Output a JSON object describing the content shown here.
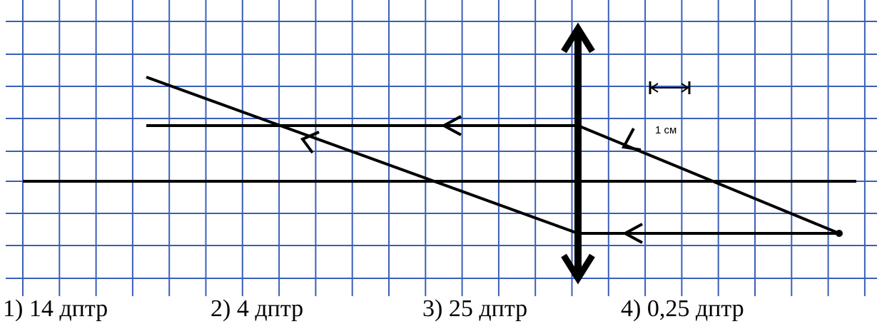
{
  "diagram": {
    "scale_label": "1 см",
    "grid_color": "#3a5fb8",
    "ray_color": "#000000"
  },
  "answers": [
    {
      "label": "1) 14 дптр"
    },
    {
      "label": "2) 4 дптр"
    },
    {
      "label": "3) 25 дптр"
    },
    {
      "label": "4) 0,25 дптр"
    }
  ]
}
